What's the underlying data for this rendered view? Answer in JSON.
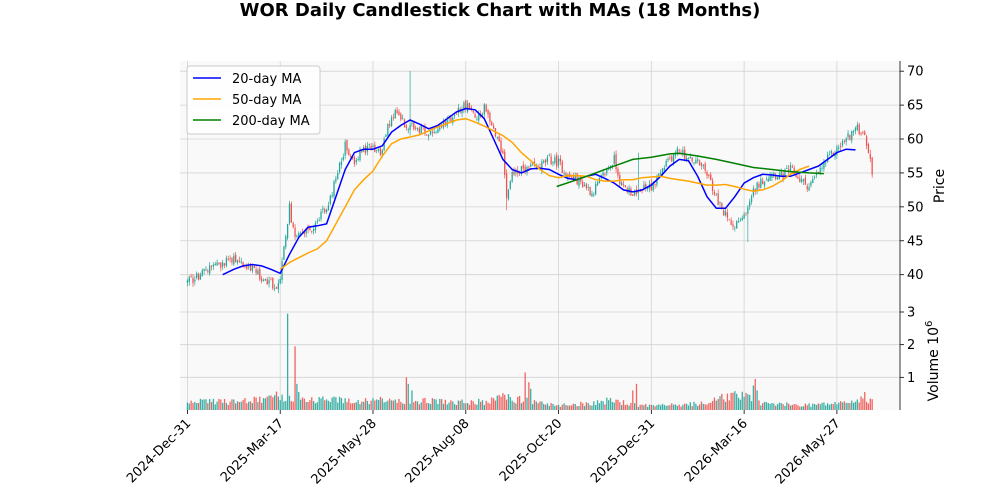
{
  "chart_data": {
    "type": "candlestick",
    "title": "WOR Daily Candlestick Chart with MAs (18 Months)",
    "ylabel": "Price",
    "volume_label": "Volume",
    "volume_multiplier": "10",
    "volume_exponent": "6",
    "x_ticks": [
      "2024-Dec-31",
      "2025-Mar-17",
      "2025-May-28",
      "2025-Aug-08",
      "2025-Oct-20",
      "2025-Dec-31",
      "2026-Mar-16",
      "2026-May-27"
    ],
    "x_tick_index": [
      0,
      50,
      100,
      150,
      200,
      250,
      300,
      350
    ],
    "x_range": [
      -4,
      384
    ],
    "price_ylim": [
      34.5,
      71.5
    ],
    "price_ticks": [
      40,
      45,
      50,
      55,
      60,
      65,
      70
    ],
    "volume_ylim": [
      0,
      3.0
    ],
    "volume_ticks": [
      1,
      2,
      3
    ],
    "colors": {
      "up": "#26a69a",
      "down": "#ef5350",
      "ma20": "#0000ff",
      "ma50": "#ffa500",
      "ma200": "#008000",
      "grid": "#d3d3d3",
      "face": "#f9f9f9"
    },
    "legend": {
      "placement": "top-left",
      "entries": [
        {
          "label": "20-day MA",
          "color": "#0000ff"
        },
        {
          "label": "50-day MA",
          "color": "#ffa500"
        },
        {
          "label": "200-day MA",
          "color": "#008000"
        }
      ]
    },
    "close_path": [
      [
        0,
        38.8
      ],
      [
        12,
        40.8
      ],
      [
        25,
        42.5
      ],
      [
        35,
        41.0
      ],
      [
        42,
        39.0
      ],
      [
        48,
        38.5
      ],
      [
        50,
        39.5
      ],
      [
        55,
        50.0
      ],
      [
        58,
        45.0
      ],
      [
        62,
        46.0
      ],
      [
        68,
        47.0
      ],
      [
        75,
        50.0
      ],
      [
        80,
        54.0
      ],
      [
        85,
        59.0
      ],
      [
        90,
        57.0
      ],
      [
        95,
        58.5
      ],
      [
        100,
        59.0
      ],
      [
        104,
        58.0
      ],
      [
        108,
        62.0
      ],
      [
        112,
        64.0
      ],
      [
        118,
        62.0
      ],
      [
        125,
        61.5
      ],
      [
        132,
        61.0
      ],
      [
        140,
        62.5
      ],
      [
        145,
        64.0
      ],
      [
        150,
        65.0
      ],
      [
        155,
        63.0
      ],
      [
        160,
        64.5
      ],
      [
        165,
        61.0
      ],
      [
        170,
        58.0
      ],
      [
        172,
        52.0
      ],
      [
        175,
        55.0
      ],
      [
        182,
        55.5
      ],
      [
        190,
        56.0
      ],
      [
        195,
        57.0
      ],
      [
        200,
        56.5
      ],
      [
        205,
        54.5
      ],
      [
        210,
        54.0
      ],
      [
        215,
        53.0
      ],
      [
        218,
        52.0
      ],
      [
        225,
        55.0
      ],
      [
        230,
        57.0
      ],
      [
        234,
        53.0
      ],
      [
        238,
        52.5
      ],
      [
        242,
        51.5
      ],
      [
        246,
        53.0
      ],
      [
        250,
        53.0
      ],
      [
        255,
        55.0
      ],
      [
        260,
        57.0
      ],
      [
        265,
        58.5
      ],
      [
        270,
        57.0
      ],
      [
        275,
        56.5
      ],
      [
        280,
        55.0
      ],
      [
        284,
        52.0
      ],
      [
        288,
        49.5
      ],
      [
        292,
        48.0
      ],
      [
        296,
        47.5
      ],
      [
        300,
        48.5
      ],
      [
        304,
        52.0
      ],
      [
        310,
        54.0
      ],
      [
        315,
        55.0
      ],
      [
        320,
        54.5
      ],
      [
        325,
        55.5
      ],
      [
        330,
        54.0
      ],
      [
        335,
        53.0
      ],
      [
        340,
        55.0
      ],
      [
        345,
        57.0
      ],
      [
        350,
        58.5
      ],
      [
        355,
        60.0
      ],
      [
        360,
        61.5
      ],
      [
        365,
        61.0
      ],
      [
        369,
        55.0
      ]
    ],
    "volume_path": [
      [
        0,
        0.25
      ],
      [
        20,
        0.25
      ],
      [
        40,
        0.3
      ],
      [
        45,
        0.5
      ],
      [
        50,
        0.35
      ],
      [
        54,
        0.45
      ],
      [
        60,
        0.3
      ],
      [
        70,
        0.3
      ],
      [
        80,
        0.3
      ],
      [
        90,
        0.25
      ],
      [
        100,
        0.3
      ],
      [
        120,
        0.3
      ],
      [
        140,
        0.25
      ],
      [
        160,
        0.25
      ],
      [
        170,
        0.4
      ],
      [
        180,
        0.3
      ],
      [
        200,
        0.15
      ],
      [
        215,
        0.2
      ],
      [
        230,
        0.3
      ],
      [
        240,
        0.15
      ],
      [
        260,
        0.15
      ],
      [
        280,
        0.2
      ],
      [
        295,
        0.5
      ],
      [
        300,
        0.4
      ],
      [
        310,
        0.2
      ],
      [
        330,
        0.15
      ],
      [
        350,
        0.2
      ],
      [
        369,
        0.35
      ]
    ],
    "volume_spikes": [
      [
        54,
        2.95
      ],
      [
        58,
        1.95
      ],
      [
        59,
        0.8
      ],
      [
        60,
        0.55
      ],
      [
        118,
        1.0
      ],
      [
        119,
        0.8
      ],
      [
        121,
        0.6
      ],
      [
        182,
        1.15
      ],
      [
        184,
        0.85
      ],
      [
        185,
        0.65
      ],
      [
        240,
        0.6
      ],
      [
        242,
        0.8
      ],
      [
        305,
        0.75
      ],
      [
        306,
        0.95
      ],
      [
        307,
        0.6
      ],
      [
        365,
        0.55
      ],
      [
        368,
        0.35
      ]
    ],
    "extra_wicks": [
      [
        120,
        70.0,
        60.5
      ],
      [
        243,
        58.0,
        51.0
      ],
      [
        302,
        50.0,
        44.8
      ],
      [
        172,
        53.0,
        49.5
      ]
    ],
    "ma20": [
      [
        19,
        40.0
      ],
      [
        25,
        40.8
      ],
      [
        30,
        41.3
      ],
      [
        35,
        41.5
      ],
      [
        40,
        41.3
      ],
      [
        45,
        40.8
      ],
      [
        50,
        40.2
      ],
      [
        55,
        43.0
      ],
      [
        60,
        45.5
      ],
      [
        65,
        47.0
      ],
      [
        70,
        47.2
      ],
      [
        75,
        47.5
      ],
      [
        80,
        51.5
      ],
      [
        85,
        55.5
      ],
      [
        90,
        58.0
      ],
      [
        95,
        58.5
      ],
      [
        100,
        58.5
      ],
      [
        105,
        59.0
      ],
      [
        110,
        61.0
      ],
      [
        115,
        62.0
      ],
      [
        120,
        62.8
      ],
      [
        125,
        62.2
      ],
      [
        130,
        61.5
      ],
      [
        135,
        62.0
      ],
      [
        140,
        63.0
      ],
      [
        145,
        64.0
      ],
      [
        150,
        64.5
      ],
      [
        155,
        64.3
      ],
      [
        160,
        63.0
      ],
      [
        165,
        60.0
      ],
      [
        170,
        57.0
      ],
      [
        175,
        55.5
      ],
      [
        180,
        55.0
      ],
      [
        185,
        55.6
      ],
      [
        190,
        55.7
      ],
      [
        195,
        55.5
      ],
      [
        200,
        54.8
      ],
      [
        205,
        54.2
      ],
      [
        210,
        54.0
      ],
      [
        215,
        54.5
      ],
      [
        220,
        54.8
      ],
      [
        225,
        54.2
      ],
      [
        230,
        53.5
      ],
      [
        235,
        52.5
      ],
      [
        240,
        52.2
      ],
      [
        245,
        52.5
      ],
      [
        250,
        53.2
      ],
      [
        255,
        54.5
      ],
      [
        260,
        56.0
      ],
      [
        265,
        57.0
      ],
      [
        270,
        56.8
      ],
      [
        275,
        54.5
      ],
      [
        280,
        51.5
      ],
      [
        285,
        49.8
      ],
      [
        290,
        49.8
      ],
      [
        295,
        51.5
      ],
      [
        300,
        53.5
      ],
      [
        305,
        54.3
      ],
      [
        310,
        54.8
      ],
      [
        315,
        54.7
      ],
      [
        320,
        54.5
      ],
      [
        325,
        54.5
      ],
      [
        330,
        55.0
      ],
      [
        335,
        55.5
      ],
      [
        340,
        56.0
      ],
      [
        345,
        57.0
      ],
      [
        350,
        58.0
      ],
      [
        355,
        58.5
      ],
      [
        360,
        58.4
      ]
    ],
    "ma50": [
      [
        50,
        40.8
      ],
      [
        55,
        41.8
      ],
      [
        60,
        42.5
      ],
      [
        65,
        43.2
      ],
      [
        70,
        43.8
      ],
      [
        75,
        45.0
      ],
      [
        80,
        47.5
      ],
      [
        85,
        50.0
      ],
      [
        90,
        52.5
      ],
      [
        95,
        54.0
      ],
      [
        100,
        55.3
      ],
      [
        105,
        57.5
      ],
      [
        110,
        59.3
      ],
      [
        115,
        60.0
      ],
      [
        120,
        60.3
      ],
      [
        125,
        60.6
      ],
      [
        130,
        61.2
      ],
      [
        135,
        61.8
      ],
      [
        140,
        62.3
      ],
      [
        145,
        62.8
      ],
      [
        150,
        63.0
      ],
      [
        155,
        62.5
      ],
      [
        160,
        61.9
      ],
      [
        165,
        61.2
      ],
      [
        170,
        60.5
      ],
      [
        175,
        59.5
      ],
      [
        180,
        58.0
      ],
      [
        185,
        56.8
      ],
      [
        190,
        55.5
      ],
      [
        195,
        54.6
      ],
      [
        200,
        54.3
      ],
      [
        205,
        54.6
      ],
      [
        210,
        54.6
      ],
      [
        215,
        54.5
      ],
      [
        220,
        54.0
      ],
      [
        225,
        53.8
      ],
      [
        230,
        53.8
      ],
      [
        235,
        54.0
      ],
      [
        240,
        54.0
      ],
      [
        245,
        54.3
      ],
      [
        250,
        54.4
      ],
      [
        255,
        54.5
      ],
      [
        260,
        54.2
      ],
      [
        265,
        54.0
      ],
      [
        270,
        53.8
      ],
      [
        275,
        53.5
      ],
      [
        280,
        53.2
      ],
      [
        285,
        53.2
      ],
      [
        290,
        53.3
      ],
      [
        295,
        53.0
      ],
      [
        300,
        52.6
      ],
      [
        305,
        52.3
      ],
      [
        310,
        52.5
      ],
      [
        315,
        53.0
      ],
      [
        320,
        53.8
      ],
      [
        325,
        54.8
      ],
      [
        330,
        55.5
      ],
      [
        335,
        56.0
      ]
    ],
    "ma200": [
      [
        199,
        53.0
      ],
      [
        210,
        54.0
      ],
      [
        220,
        55.0
      ],
      [
        230,
        56.0
      ],
      [
        240,
        57.0
      ],
      [
        250,
        57.3
      ],
      [
        260,
        57.8
      ],
      [
        265,
        57.9
      ],
      [
        275,
        57.5
      ],
      [
        285,
        57.0
      ],
      [
        295,
        56.4
      ],
      [
        305,
        55.8
      ],
      [
        315,
        55.5
      ],
      [
        325,
        55.2
      ],
      [
        335,
        55.0
      ],
      [
        343,
        54.9
      ]
    ]
  }
}
